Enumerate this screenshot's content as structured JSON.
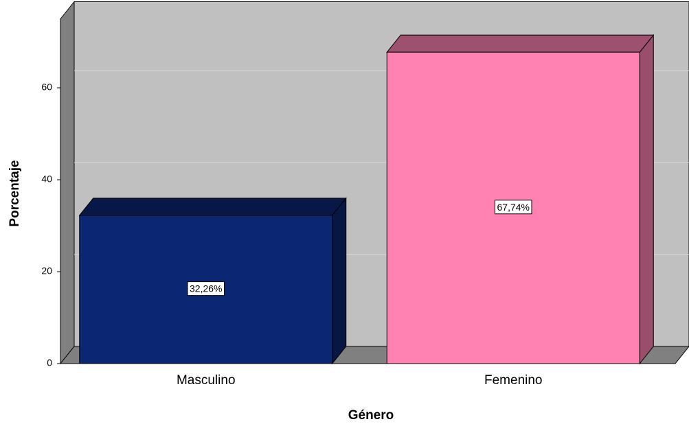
{
  "chart_data": {
    "type": "bar3d",
    "x_label": "Género",
    "y_label": "Porcentaje",
    "categories": [
      "Masculino",
      "Femenino"
    ],
    "values": [
      32.26,
      67.74
    ],
    "value_labels": [
      "32,26%",
      "67,74%"
    ],
    "colors": [
      "#0b2672",
      "#ff82b3"
    ],
    "ylim": [
      0,
      75
    ],
    "yticks": [
      0,
      20,
      40,
      60
    ],
    "grid": true
  }
}
